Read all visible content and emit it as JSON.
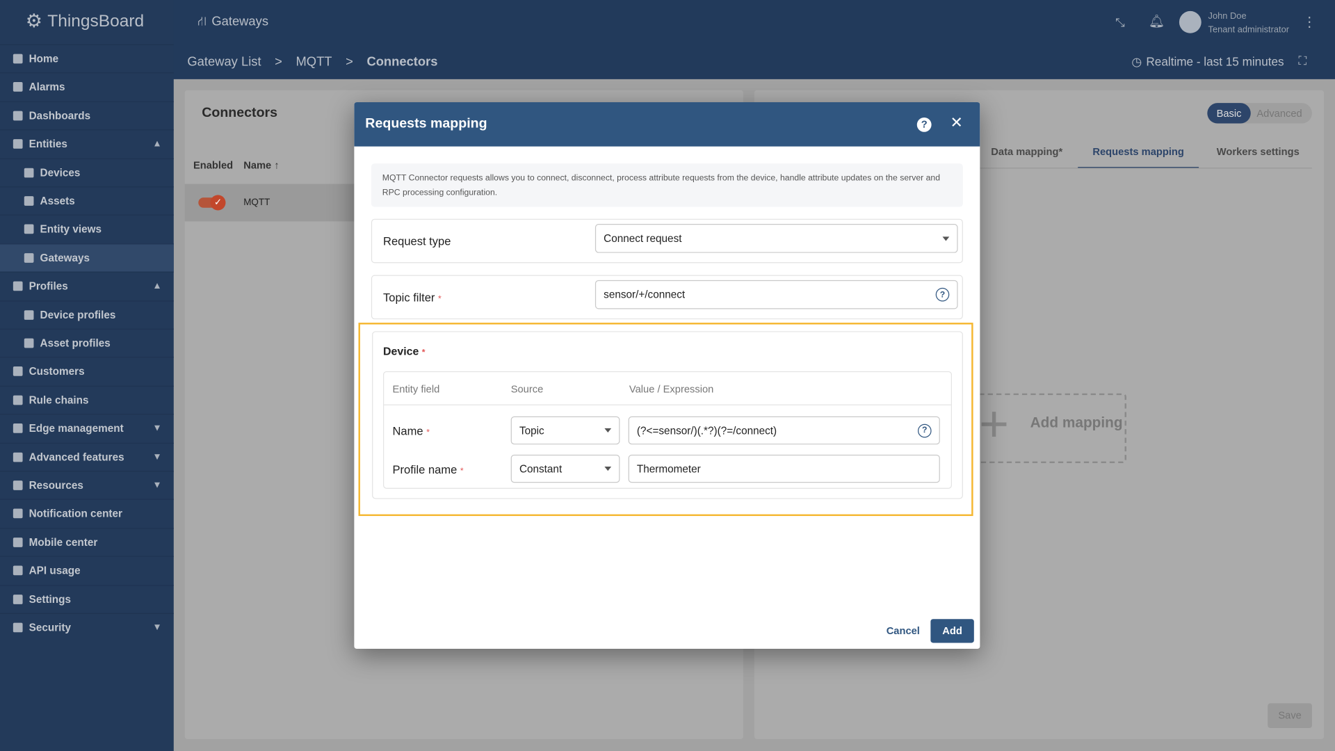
{
  "app": {
    "name": "ThingsBoard",
    "section": "Gateways"
  },
  "user": {
    "name": "John Doe",
    "role": "Tenant administrator"
  },
  "breadcrumb": [
    "Gateway List",
    "MQTT",
    "Connectors"
  ],
  "timewindow": "Realtime - last 15 minutes",
  "sidebar": {
    "items": [
      {
        "label": "Home"
      },
      {
        "label": "Alarms"
      },
      {
        "label": "Dashboards"
      },
      {
        "label": "Entities",
        "chev": "up"
      },
      {
        "label": "Devices",
        "sub": true
      },
      {
        "label": "Assets",
        "sub": true
      },
      {
        "label": "Entity views",
        "sub": true
      },
      {
        "label": "Gateways",
        "sub": true,
        "selected": true
      },
      {
        "label": "Profiles",
        "chev": "up"
      },
      {
        "label": "Device profiles",
        "sub": true
      },
      {
        "label": "Asset profiles",
        "sub": true
      },
      {
        "label": "Customers"
      },
      {
        "label": "Rule chains"
      },
      {
        "label": "Edge management",
        "chev": "down"
      },
      {
        "label": "Advanced features",
        "chev": "down"
      },
      {
        "label": "Resources",
        "chev": "down"
      },
      {
        "label": "Notification center"
      },
      {
        "label": "Mobile center"
      },
      {
        "label": "API usage"
      },
      {
        "label": "Settings"
      },
      {
        "label": "Security",
        "chev": "down"
      }
    ]
  },
  "connectors": {
    "title": "Connectors",
    "col_enabled": "Enabled",
    "col_name": "Name",
    "rows": [
      {
        "name": "MQTT",
        "enabled": true
      }
    ]
  },
  "right_panel": {
    "mode_basic": "Basic",
    "mode_advanced": "Advanced",
    "tabs": [
      "Data mapping*",
      "Requests mapping",
      "Workers settings"
    ],
    "active_tab": 1,
    "add_mapping": "Add mapping",
    "save": "Save"
  },
  "dialog": {
    "title": "Requests mapping",
    "info": "MQTT Connector requests allows you to connect, disconnect, process attribute requests from the device, handle attribute updates on the server and RPC processing configuration.",
    "request_type_label": "Request type",
    "request_type": "Connect request",
    "topic_filter_label": "Topic filter",
    "topic_filter": "sensor/+/connect",
    "device_label": "Device",
    "table_headers": [
      "Entity field",
      "Source",
      "Value / Expression"
    ],
    "rows": [
      {
        "field": "Name",
        "source": "Topic",
        "value": "(?<=sensor/)(.*?)(?=/connect)"
      },
      {
        "field": "Profile name",
        "source": "Constant",
        "value": "Thermometer"
      }
    ],
    "cancel": "Cancel",
    "add": "Add"
  },
  "colors": {
    "highlight": "#f5b731",
    "primary": "#305680"
  }
}
